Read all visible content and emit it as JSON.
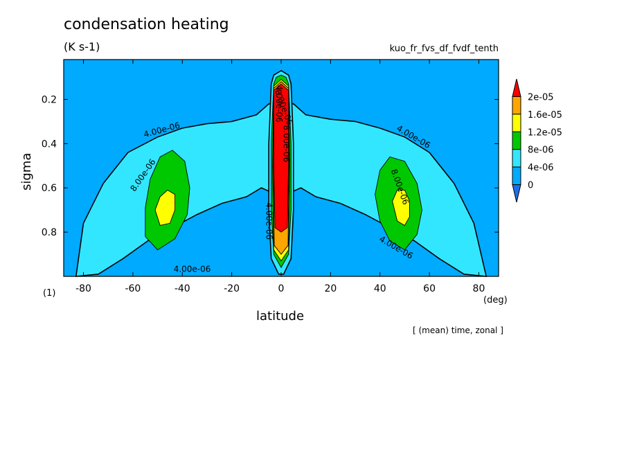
{
  "chart_data": {
    "type": "heatmap",
    "title": "condensation heating",
    "units": "(K s-1)",
    "run_name": "kuo_fr_fvs_df_fvdf_tenth",
    "xlabel": "latitude",
    "x_unit": "(deg)",
    "ylabel": "sigma",
    "y_unit": "(1)",
    "annotation": "[ (mean) time, zonal ]",
    "xlim": [
      -88,
      88
    ],
    "ylim": [
      0.02,
      1.0
    ],
    "y_inverted": true,
    "x_ticks": [
      -80,
      -60,
      -40,
      -20,
      0,
      20,
      40,
      60,
      80
    ],
    "x_tick_labels": [
      "-80",
      "-60",
      "-40",
      "-20",
      "0",
      "20",
      "40",
      "60",
      "80"
    ],
    "y_ticks": [
      0.2,
      0.4,
      0.6,
      0.8
    ],
    "y_tick_labels": [
      "0.2",
      "0.4",
      "0.6",
      "0.8"
    ],
    "colorbar": {
      "levels": [
        0,
        4e-06,
        8e-06,
        1.2e-05,
        1.6e-05,
        2e-05
      ],
      "labels": [
        "0",
        "4e-06",
        "8e-06",
        "1.2e-05",
        "1.6e-05",
        "2e-05"
      ],
      "colors": [
        "#1e6fe6",
        "#00aaff",
        "#33e6ff",
        "#00c800",
        "#ffff00",
        "#ffa500",
        "#ff0000"
      ]
    },
    "contour_labels": [
      "4.00e-06",
      "8.00e-06",
      "4.00e-06",
      "8.00e-06",
      "4.00e-06",
      "4.00e-06",
      "8.00e-06",
      "4.00e-06",
      "8.00e-06",
      "4.00e-06"
    ],
    "regions": [
      {
        "name": "midlat-south-4e-06",
        "level": 4e-06,
        "poly": [
          [
            -83,
            1.0
          ],
          [
            -80,
            0.76
          ],
          [
            -72,
            0.58
          ],
          [
            -62,
            0.44
          ],
          [
            -50,
            0.37
          ],
          [
            -40,
            0.33
          ],
          [
            -30,
            0.31
          ],
          [
            -20,
            0.3
          ],
          [
            -10,
            0.27
          ],
          [
            -5,
            0.22
          ],
          [
            5,
            0.22
          ],
          [
            10,
            0.27
          ],
          [
            20,
            0.29
          ],
          [
            30,
            0.3
          ],
          [
            40,
            0.33
          ],
          [
            50,
            0.37
          ],
          [
            60,
            0.44
          ],
          [
            70,
            0.58
          ],
          [
            78,
            0.76
          ],
          [
            83,
            1.0
          ],
          [
            74,
            0.99
          ],
          [
            64,
            0.92
          ],
          [
            54,
            0.84
          ],
          [
            44,
            0.78
          ],
          [
            34,
            0.72
          ],
          [
            24,
            0.67
          ],
          [
            14,
            0.64
          ],
          [
            8,
            0.6
          ],
          [
            4,
            0.62
          ],
          [
            -4,
            0.62
          ],
          [
            -8,
            0.6
          ],
          [
            -14,
            0.64
          ],
          [
            -24,
            0.67
          ],
          [
            -34,
            0.72
          ],
          [
            -44,
            0.78
          ],
          [
            -54,
            0.84
          ],
          [
            -64,
            0.92
          ],
          [
            -74,
            0.99
          ]
        ]
      },
      {
        "name": "midlat-south-8e-06",
        "level": 8e-06,
        "poly": [
          [
            -55,
            0.69
          ],
          [
            -53,
            0.56
          ],
          [
            -49,
            0.46
          ],
          [
            -44,
            0.43
          ],
          [
            -39,
            0.48
          ],
          [
            -37,
            0.6
          ],
          [
            -38,
            0.72
          ],
          [
            -43,
            0.83
          ],
          [
            -50,
            0.88
          ],
          [
            -55,
            0.82
          ]
        ]
      },
      {
        "name": "midlat-south-1.2e-05",
        "level": 1.2e-05,
        "poly": [
          [
            -51,
            0.7
          ],
          [
            -49,
            0.64
          ],
          [
            -46,
            0.61
          ],
          [
            -43,
            0.63
          ],
          [
            -43,
            0.7
          ],
          [
            -45,
            0.76
          ],
          [
            -49,
            0.77
          ]
        ]
      },
      {
        "name": "midlat-north-8e-06",
        "level": 8e-06,
        "poly": [
          [
            38,
            0.63
          ],
          [
            40,
            0.52
          ],
          [
            44,
            0.46
          ],
          [
            50,
            0.48
          ],
          [
            55,
            0.58
          ],
          [
            57,
            0.7
          ],
          [
            55,
            0.81
          ],
          [
            50,
            0.88
          ],
          [
            44,
            0.84
          ],
          [
            40,
            0.75
          ]
        ]
      },
      {
        "name": "midlat-north-1.2e-05",
        "level": 1.2e-05,
        "poly": [
          [
            45,
            0.66
          ],
          [
            47,
            0.61
          ],
          [
            50,
            0.61
          ],
          [
            52,
            0.66
          ],
          [
            52,
            0.73
          ],
          [
            50,
            0.77
          ],
          [
            47,
            0.75
          ]
        ]
      },
      {
        "name": "equator-4e-06",
        "level": 4e-06,
        "poly": [
          [
            -4,
            0.13
          ],
          [
            -3,
            0.09
          ],
          [
            0,
            0.07
          ],
          [
            3,
            0.09
          ],
          [
            4,
            0.13
          ],
          [
            5,
            0.4
          ],
          [
            5,
            0.7
          ],
          [
            4,
            0.92
          ],
          [
            1,
            0.99
          ],
          [
            -1,
            0.99
          ],
          [
            -4,
            0.92
          ],
          [
            -5,
            0.7
          ],
          [
            -5,
            0.4
          ]
        ]
      },
      {
        "name": "equator-8e-06",
        "level": 8e-06,
        "poly": [
          [
            -3,
            0.13
          ],
          [
            -2,
            0.1
          ],
          [
            0,
            0.09
          ],
          [
            2,
            0.1
          ],
          [
            3,
            0.13
          ],
          [
            4,
            0.4
          ],
          [
            4,
            0.7
          ],
          [
            3,
            0.9
          ],
          [
            0,
            0.96
          ],
          [
            -3,
            0.9
          ],
          [
            -4,
            0.7
          ],
          [
            -4,
            0.4
          ]
        ]
      },
      {
        "name": "equator-1.2e-05",
        "level": 1.2e-05,
        "poly": [
          [
            -3,
            0.14
          ],
          [
            0,
            0.11
          ],
          [
            3,
            0.14
          ],
          [
            3.5,
            0.5
          ],
          [
            3,
            0.88
          ],
          [
            0,
            0.93
          ],
          [
            -3,
            0.88
          ],
          [
            -3.5,
            0.5
          ]
        ]
      },
      {
        "name": "equator-1.6e-05",
        "level": 1.6e-05,
        "poly": [
          [
            -3,
            0.15
          ],
          [
            0,
            0.12
          ],
          [
            3,
            0.15
          ],
          [
            3.2,
            0.5
          ],
          [
            2.8,
            0.86
          ],
          [
            0,
            0.9
          ],
          [
            -2.8,
            0.86
          ],
          [
            -3.2,
            0.5
          ]
        ]
      },
      {
        "name": "equator-2e-05",
        "level": 2e-05,
        "poly": [
          [
            -3,
            0.16
          ],
          [
            0,
            0.13
          ],
          [
            3,
            0.16
          ],
          [
            3,
            0.5
          ],
          [
            2.5,
            0.78
          ],
          [
            0,
            0.8
          ],
          [
            -2.5,
            0.78
          ],
          [
            -3,
            0.5
          ]
        ]
      }
    ]
  }
}
